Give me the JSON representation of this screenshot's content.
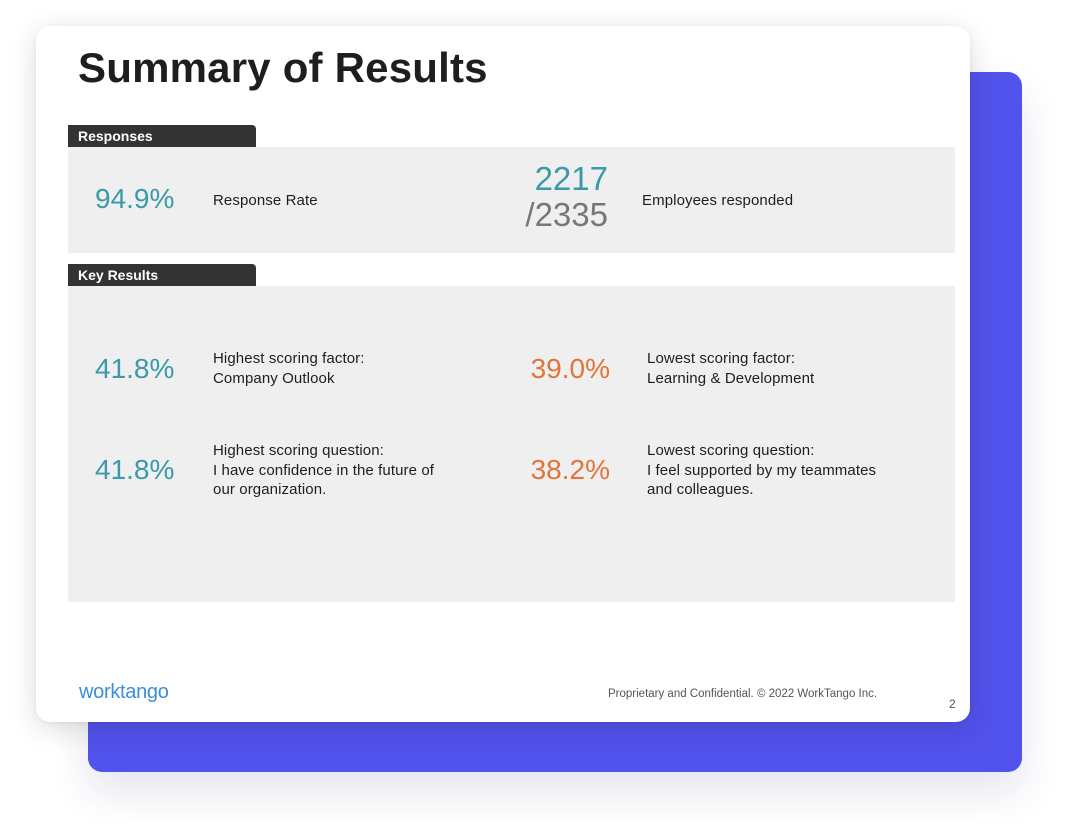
{
  "slide": {
    "title": "Summary of Results",
    "responses": {
      "header": "Responses",
      "response_rate": {
        "value": "94.9%",
        "label": "Response Rate"
      },
      "employees": {
        "responded": "2217",
        "total": "/2335",
        "label": "Employees responded"
      }
    },
    "key_results": {
      "header": "Key Results",
      "highest_factor": {
        "value": "41.8%",
        "label": "Highest scoring factor:\nCompany Outlook"
      },
      "lowest_factor": {
        "value": "39.0%",
        "label": "Lowest scoring factor:\nLearning & Development"
      },
      "highest_question": {
        "value": "41.8%",
        "label": "Highest scoring question:\nI have confidence in the future of\nour organization."
      },
      "lowest_question": {
        "value": "38.2%",
        "label": "Lowest scoring question:\nI feel supported by my teammates\nand colleagues."
      }
    },
    "footer": {
      "logo": "worktango",
      "confidential": "Proprietary and Confidential. © 2022 WorkTango Inc.",
      "page_number": "2"
    }
  },
  "colors": {
    "positive": "#3a9aaa",
    "negative": "#e2743a",
    "total": "#777777",
    "backdrop": "#5252ec",
    "tab": "#333333",
    "panel": "#efefef"
  }
}
